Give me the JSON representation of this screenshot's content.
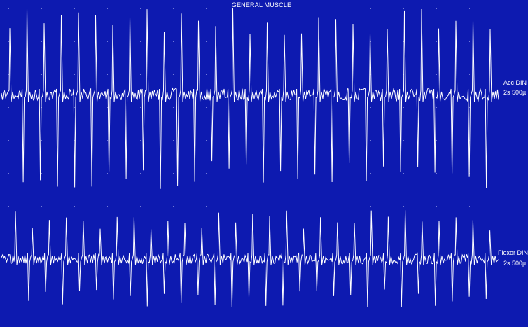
{
  "screen": {
    "title": "GENERAL MUSCLE",
    "background": "#0d1ab0",
    "trace_color": "#ffffff"
  },
  "channels": [
    {
      "name": "Acc DIN",
      "scale": "2s 500µ"
    },
    {
      "name": "Flexor DIN",
      "scale": "2s 500µ"
    }
  ]
}
